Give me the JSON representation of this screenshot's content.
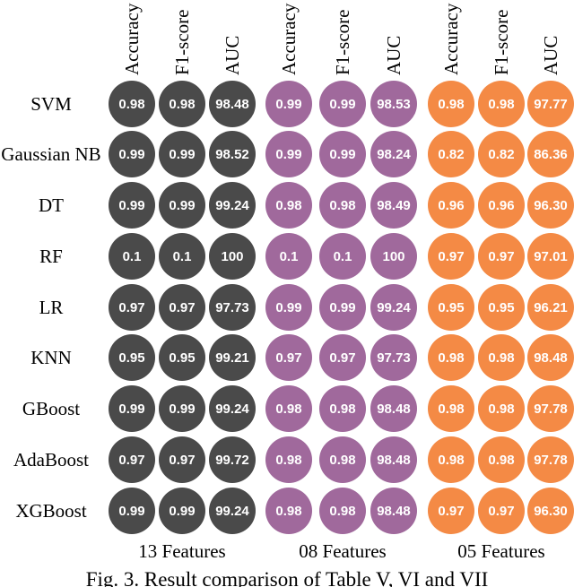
{
  "chart_data": {
    "type": "table",
    "rows": [
      "SVM",
      "Gaussian NB",
      "DT",
      "RF",
      "LR",
      "KNN",
      "GBoost",
      "AdaBoost",
      "XGBoost"
    ],
    "metrics": [
      "Accuracy",
      "F1-score",
      "AUC"
    ],
    "groups": [
      {
        "name": "13 Features",
        "color": "#4a4a4a",
        "values": [
          [
            "0.98",
            "0.98",
            "98.48"
          ],
          [
            "0.99",
            "0.99",
            "98.52"
          ],
          [
            "0.99",
            "0.99",
            "99.24"
          ],
          [
            "0.1",
            "0.1",
            "100"
          ],
          [
            "0.97",
            "0.97",
            "97.73"
          ],
          [
            "0.95",
            "0.95",
            "99.21"
          ],
          [
            "0.99",
            "0.99",
            "99.24"
          ],
          [
            "0.97",
            "0.97",
            "99.72"
          ],
          [
            "0.99",
            "0.99",
            "99.24"
          ]
        ]
      },
      {
        "name": "08 Features",
        "color": "#a0699c",
        "values": [
          [
            "0.99",
            "0.99",
            "98.53"
          ],
          [
            "0.99",
            "0.99",
            "98.24"
          ],
          [
            "0.98",
            "0.98",
            "98.49"
          ],
          [
            "0.1",
            "0.1",
            "100"
          ],
          [
            "0.99",
            "0.99",
            "99.24"
          ],
          [
            "0.97",
            "0.97",
            "97.73"
          ],
          [
            "0.98",
            "0.98",
            "98.48"
          ],
          [
            "0.98",
            "0.98",
            "98.48"
          ],
          [
            "0.98",
            "0.98",
            "98.48"
          ]
        ]
      },
      {
        "name": "05 Features",
        "color": "#f48a45",
        "values": [
          [
            "0.98",
            "0.98",
            "97.77"
          ],
          [
            "0.82",
            "0.82",
            "86.36"
          ],
          [
            "0.96",
            "0.96",
            "96.30"
          ],
          [
            "0.97",
            "0.97",
            "97.01"
          ],
          [
            "0.95",
            "0.95",
            "96.21"
          ],
          [
            "0.98",
            "0.98",
            "98.48"
          ],
          [
            "0.98",
            "0.98",
            "97.78"
          ],
          [
            "0.98",
            "0.98",
            "97.78"
          ],
          [
            "0.97",
            "0.97",
            "96.30"
          ]
        ]
      }
    ]
  },
  "caption": "Fig. 3. Result comparison of Table V, VI and VII"
}
